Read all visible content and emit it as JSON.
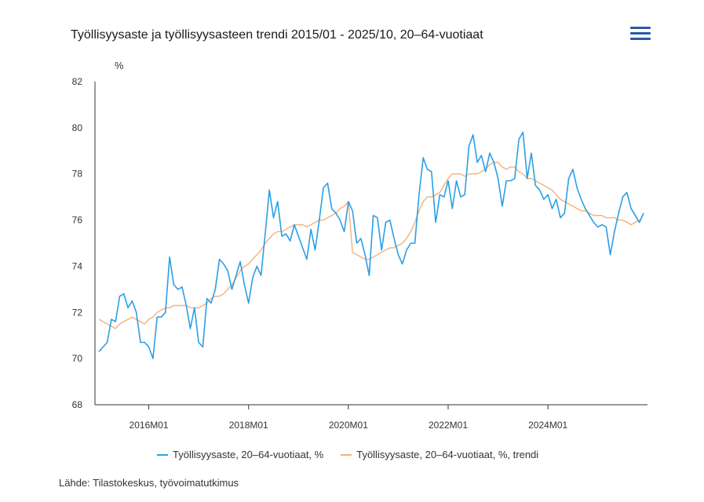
{
  "header": {
    "title": "Työllisyysaste ja työllisyysasteen trendi 2015/01 - 2025/10, 20–64-vuotiaat",
    "menu_icon": "hamburger-menu-icon"
  },
  "source": "Lähde: Tilastokeskus, työvoimatutkimus",
  "colors": {
    "raw": "#2b9fe6",
    "trend": "#f5b07a",
    "axis": "#333333"
  },
  "chart_data": {
    "type": "line",
    "title": "Työllisyysaste ja työllisyysasteen trendi 2015/01 - 2025/10, 20–64-vuotiaat",
    "ylabel": "%",
    "xlabel": "",
    "ylim": [
      68,
      82
    ],
    "yticks": [
      "68",
      "70",
      "72",
      "74",
      "76",
      "78",
      "80",
      "82"
    ],
    "xticks": [
      {
        "label": "2016M01",
        "index": 12
      },
      {
        "label": "2018M01",
        "index": 36
      },
      {
        "label": "2020M01",
        "index": 60
      },
      {
        "label": "2022M01",
        "index": 84
      },
      {
        "label": "2024M01",
        "index": 108
      }
    ],
    "x_start": "2015M01",
    "x_end": "2025M10",
    "grid": false,
    "legend_position": "bottom",
    "series": [
      {
        "name": "Työllisyysaste, 20–64-vuotiaat, %",
        "color": "#2b9fe6",
        "values": [
          70.3,
          70.5,
          70.7,
          71.7,
          71.6,
          72.7,
          72.8,
          72.2,
          72.5,
          72.0,
          70.7,
          70.7,
          70.5,
          70.0,
          71.8,
          71.8,
          72.0,
          74.4,
          73.2,
          73.0,
          73.1,
          72.3,
          71.3,
          72.2,
          70.7,
          70.5,
          72.6,
          72.4,
          73.0,
          74.3,
          74.1,
          73.8,
          73.0,
          73.6,
          74.2,
          73.2,
          72.4,
          73.5,
          74.0,
          73.6,
          75.4,
          77.3,
          76.1,
          76.8,
          75.3,
          75.4,
          75.1,
          75.8,
          75.3,
          74.8,
          74.3,
          75.6,
          74.7,
          76.0,
          77.4,
          77.6,
          76.5,
          76.3,
          76.0,
          75.5,
          76.8,
          76.4,
          75.0,
          75.2,
          74.5,
          73.6,
          76.2,
          76.1,
          74.7,
          75.9,
          76.0,
          75.2,
          74.5,
          74.1,
          74.7,
          75.0,
          75.0,
          77.1,
          78.7,
          78.2,
          78.1,
          75.9,
          77.1,
          77.0,
          77.7,
          76.5,
          77.7,
          77.0,
          77.1,
          79.2,
          79.7,
          78.5,
          78.8,
          78.1,
          78.9,
          78.5,
          77.8,
          76.6,
          77.7,
          77.7,
          77.8,
          79.5,
          79.8,
          77.8,
          78.9,
          77.5,
          77.3,
          76.9,
          77.1,
          76.5,
          76.9,
          76.1,
          76.3,
          77.8,
          78.2,
          77.4,
          76.9,
          76.5,
          76.2,
          75.9,
          75.7,
          75.8,
          75.7,
          74.5,
          75.5,
          76.3,
          77.0,
          77.2,
          76.5,
          76.2,
          75.9,
          76.3
        ]
      },
      {
        "name": "Työllisyysaste, 20–64-vuotiaat, %, trendi",
        "color": "#f5b07a",
        "values": [
          71.7,
          71.6,
          71.5,
          71.4,
          71.3,
          71.5,
          71.6,
          71.7,
          71.8,
          71.7,
          71.6,
          71.5,
          71.7,
          71.8,
          72.0,
          72.1,
          72.2,
          72.2,
          72.3,
          72.3,
          72.3,
          72.3,
          72.2,
          72.2,
          72.2,
          72.3,
          72.4,
          72.6,
          72.7,
          72.7,
          72.8,
          73.0,
          73.2,
          73.5,
          73.8,
          74.0,
          74.1,
          74.3,
          74.5,
          74.7,
          75.0,
          75.2,
          75.4,
          75.5,
          75.5,
          75.6,
          75.7,
          75.8,
          75.8,
          75.8,
          75.7,
          75.8,
          75.9,
          76.0,
          76.0,
          76.1,
          76.2,
          76.3,
          76.5,
          76.6,
          76.8,
          74.6,
          74.5,
          74.4,
          74.3,
          74.3,
          74.4,
          74.5,
          74.6,
          74.7,
          74.8,
          74.8,
          74.9,
          75.0,
          75.2,
          75.5,
          75.9,
          76.4,
          76.8,
          77.0,
          77.0,
          77.1,
          77.2,
          77.5,
          77.8,
          78.0,
          78.0,
          78.0,
          77.9,
          78.0,
          78.0,
          78.0,
          78.1,
          78.2,
          78.4,
          78.5,
          78.5,
          78.3,
          78.2,
          78.3,
          78.3,
          78.1,
          78.0,
          77.8,
          77.8,
          77.7,
          77.6,
          77.5,
          77.4,
          77.3,
          77.1,
          76.9,
          76.8,
          76.7,
          76.6,
          76.5,
          76.4,
          76.4,
          76.3,
          76.2,
          76.2,
          76.2,
          76.1,
          76.1,
          76.1,
          76.0,
          76.0,
          75.9,
          75.8,
          75.9,
          76.0
        ]
      }
    ]
  }
}
